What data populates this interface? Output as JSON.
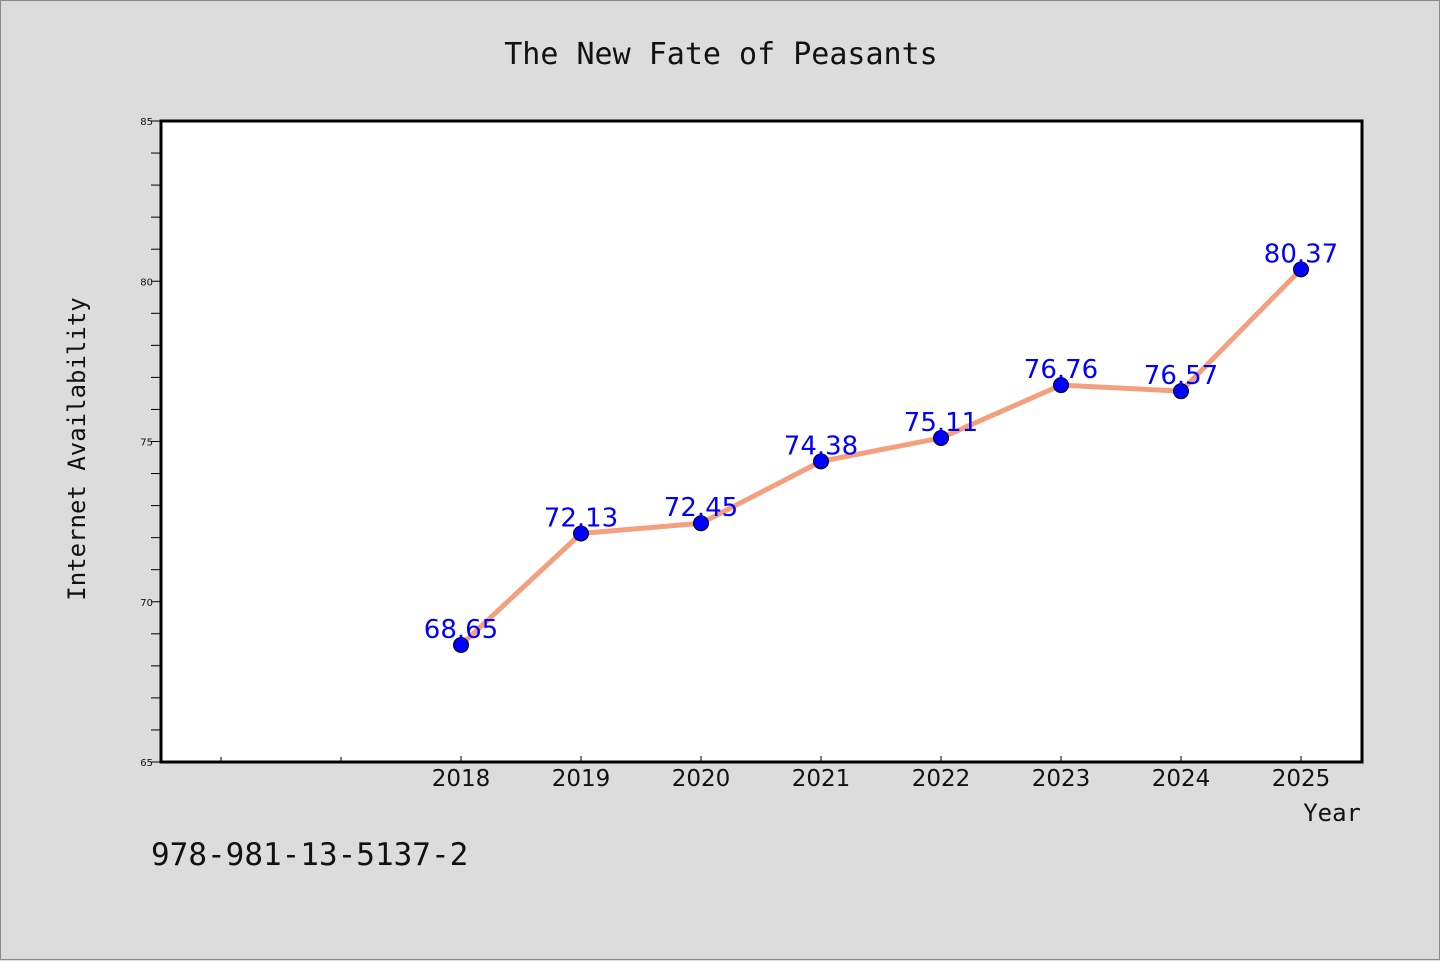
{
  "chart_data": {
    "type": "line",
    "title": "The New Fate of Peasants",
    "xlabel": "Year",
    "ylabel": "Internet Availability",
    "x": [
      "2018",
      "2019",
      "2020",
      "2021",
      "2022",
      "2023",
      "2024",
      "2025"
    ],
    "series": [
      {
        "values": [
          68.65,
          72.13,
          72.45,
          74.38,
          75.11,
          76.76,
          76.57,
          80.37
        ],
        "labels": [
          "68.65",
          "72.13",
          "72.45",
          "74.38",
          "75.11",
          "76.76",
          "76.57",
          "80.37"
        ]
      }
    ],
    "ylim": [
      65,
      85
    ],
    "yticks": [
      "65",
      "70",
      "75",
      "80",
      "85"
    ],
    "grid": false,
    "line_color": "#f4a07e",
    "marker_color": "#0000ff",
    "label_color": "#0000ff",
    "annotation": "978-981-13-5137-2"
  }
}
